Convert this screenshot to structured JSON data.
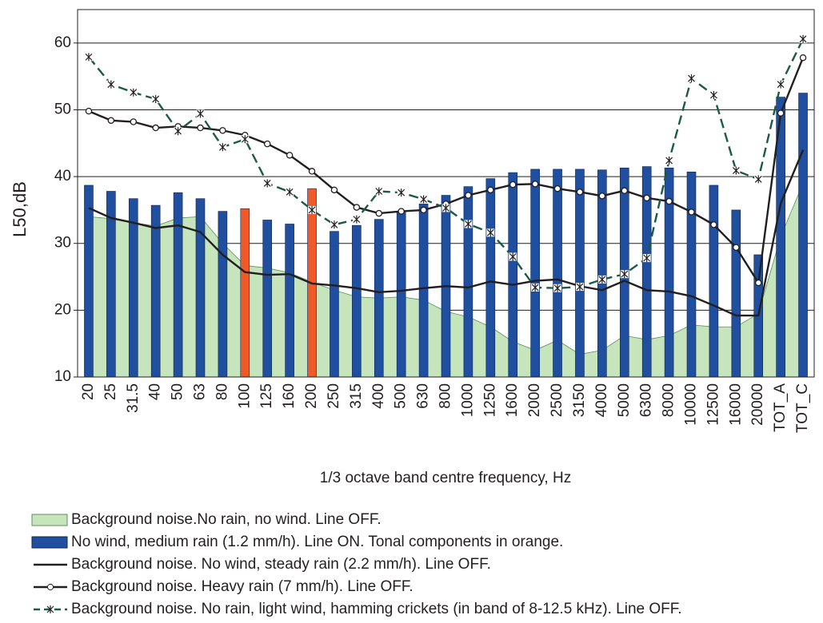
{
  "chart_data": {
    "type": "combo",
    "y_label": "L50,dB",
    "x_label": "1/3 octave band centre frequency, Hz",
    "categories": [
      "20",
      "25",
      "31.5",
      "40",
      "50",
      "63",
      "80",
      "100",
      "125",
      "160",
      "200",
      "250",
      "315",
      "400",
      "500",
      "630",
      "800",
      "1000",
      "1250",
      "1600",
      "2000",
      "2500",
      "3150",
      "4000",
      "5000",
      "6300",
      "8000",
      "10000",
      "12500",
      "16000",
      "20000",
      "TOT_A",
      "TOT_C"
    ],
    "ylim": [
      10,
      65
    ],
    "yticks": [
      10,
      20,
      30,
      40,
      50,
      60
    ],
    "grid": true,
    "series": [
      {
        "name": "Background noise.No rain, no wind. Line OFF.",
        "type": "area",
        "color": "#c7e5bd",
        "edge_color": "#5d8f5a",
        "values": [
          34,
          33.7,
          33.1,
          32.6,
          33.8,
          34,
          30,
          26.7,
          26.3,
          25.6,
          24.2,
          23,
          22,
          21.8,
          22,
          21.5,
          19.8,
          19,
          17.5,
          15.3,
          14,
          15.5,
          13.4,
          14,
          16.2,
          15.6,
          16.2,
          17.8,
          17.5,
          17.5,
          19.5,
          31,
          39
        ]
      },
      {
        "name": "No wind, medium rain (1.2 mm/h). Line ON. Tonal components in orange.",
        "type": "bar",
        "color": "#1f4f9e",
        "point_colors": [
          "#1f4f9e",
          "#1f4f9e",
          "#1f4f9e",
          "#1f4f9e",
          "#1f4f9e",
          "#1f4f9e",
          "#1f4f9e",
          "#f05a28",
          "#1f4f9e",
          "#1f4f9e",
          "#f05a28",
          "#1f4f9e",
          "#1f4f9e",
          "#1f4f9e",
          "#1f4f9e",
          "#1f4f9e",
          "#1f4f9e",
          "#1f4f9e",
          "#1f4f9e",
          "#1f4f9e",
          "#1f4f9e",
          "#1f4f9e",
          "#1f4f9e",
          "#1f4f9e",
          "#1f4f9e",
          "#1f4f9e",
          "#1f4f9e",
          "#1f4f9e",
          "#1f4f9e",
          "#1f4f9e",
          "#1f4f9e",
          "#1f4f9e",
          "#1f4f9e"
        ],
        "values": [
          38.7,
          37.8,
          36.7,
          35.7,
          37.6,
          36.7,
          34.8,
          35.2,
          33.5,
          32.9,
          38.2,
          31.8,
          32.7,
          33.6,
          34.8,
          35.9,
          37.2,
          38.5,
          39.7,
          40.6,
          41.1,
          41.1,
          41.1,
          41.0,
          41.3,
          41.5,
          41.3,
          40.7,
          38.7,
          35.0,
          28.3,
          51.9,
          52.5
        ]
      },
      {
        "name": "Background noise. No wind, steady rain (2.2 mm/h). Line OFF.",
        "type": "line",
        "color": "#231f20",
        "marker": "none",
        "values": [
          35.3,
          33.8,
          33.1,
          32.3,
          32.7,
          31.7,
          28.3,
          25.7,
          25.3,
          25.4,
          24,
          23.7,
          23.3,
          22.7,
          22.9,
          23.3,
          23.6,
          23.4,
          24.3,
          23.8,
          24.4,
          24.6,
          23.6,
          23.0,
          24.4,
          23,
          22.8,
          22.1,
          20.7,
          19.2,
          19.2,
          36,
          44
        ]
      },
      {
        "name": "Background noise. Heavy rain (7 mm/h). Line OFF.",
        "type": "line",
        "color": "#231f20",
        "marker": "circle",
        "values": [
          49.8,
          48.4,
          48.2,
          47.3,
          47.5,
          47.3,
          46.9,
          46.2,
          44.9,
          43.2,
          40.8,
          38,
          35.4,
          34.5,
          34.8,
          35,
          35.9,
          37.2,
          38,
          38.8,
          38.9,
          38.2,
          37.7,
          37.1,
          37.9,
          36.8,
          36.3,
          34.7,
          32.8,
          29.4,
          24.1,
          49.5,
          57.8
        ]
      },
      {
        "name": "Background noise. No rain, light wind, hamming crickets (in band of  8-12.5 kHz). Line OFF.",
        "type": "line",
        "color": "#1b5a45",
        "marker": "cross",
        "dash": true,
        "values": [
          57.9,
          53.8,
          52.6,
          51.6,
          46.8,
          49.4,
          44.4,
          45.6,
          39,
          37.7,
          35,
          32.8,
          33.6,
          37.8,
          37.6,
          36.6,
          35.3,
          32.9,
          31.6,
          28,
          23.4,
          23.3,
          23.5,
          24.6,
          25.4,
          27.8,
          42.4,
          54.7,
          52.2,
          40.9,
          39.6,
          53.8,
          60.6
        ]
      }
    ]
  }
}
